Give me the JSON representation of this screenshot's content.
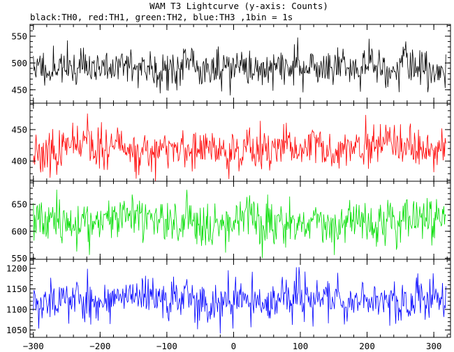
{
  "header": {
    "title": "WAM T3 Lightcurve (y-axis: Counts)",
    "subtitle": "black:TH0, red:TH1, green:TH2, blue:TH3 ,1bin = 1s"
  },
  "chart_data": {
    "type": "line",
    "title": "WAM T3 Lightcurve (y-axis: Counts)",
    "subtitle": "black:TH0, red:TH1, green:TH2, blue:TH3 ,1bin = 1s",
    "xlabel": "",
    "ylabel": "Counts",
    "xlim": [
      -305,
      325
    ],
    "x_ticks": [
      -300,
      -200,
      -100,
      0,
      100,
      200,
      300
    ],
    "x_tick_labels": [
      "−300",
      "−200",
      "−100",
      "0",
      "100",
      "200",
      "300"
    ],
    "bin_seconds": 1,
    "x_start": -300,
    "x_end": 318,
    "panels": [
      {
        "name": "TH0",
        "color": "#000000",
        "ylim": [
          425,
          572
        ],
        "y_ticks": [
          450,
          500,
          550
        ],
        "mean": 492,
        "sd": 19,
        "seed": 11
      },
      {
        "name": "TH1",
        "color": "#ff0000",
        "ylim": [
          368,
          492
        ],
        "y_ticks": [
          400,
          450
        ],
        "mean": 417,
        "sd": 17,
        "seed": 23
      },
      {
        "name": "TH2",
        "color": "#00dd00",
        "ylim": [
          548,
          693
        ],
        "y_ticks": [
          550,
          600,
          650
        ],
        "mean": 620,
        "sd": 22,
        "seed": 37
      },
      {
        "name": "TH3",
        "color": "#0000ff",
        "ylim": [
          1032,
          1222
        ],
        "y_ticks": [
          1050,
          1100,
          1150,
          1200
        ],
        "mean": 1125,
        "sd": 28,
        "seed": 53
      }
    ]
  }
}
